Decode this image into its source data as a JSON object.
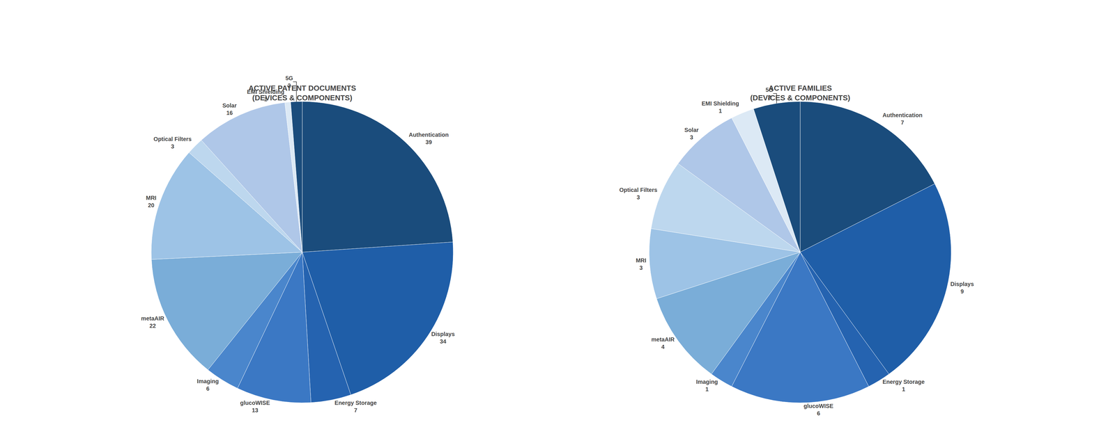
{
  "chart_data": [
    {
      "type": "pie",
      "title": "ACTIVE PATENT DOCUMENTS\n(DEVICES & COMPONENTS)",
      "categories": [
        "Authentication",
        "Displays",
        "Energy Storage",
        "glucoWISE",
        "Imaging",
        "metaAIR",
        "MRI",
        "Optical Filters",
        "Solar",
        "EMI Shielding",
        "5G"
      ],
      "values": [
        39,
        34,
        7,
        13,
        6,
        22,
        20,
        3,
        16,
        1,
        2
      ],
      "colors": [
        "#1a4c7c",
        "#1f5ea8",
        "#2563b0",
        "#3b78c4",
        "#4a86cc",
        "#7aadd8",
        "#9dc3e6",
        "#bdd7ee",
        "#afc7e8",
        "#dce9f5",
        "#1a4c7c"
      ],
      "data_labels": true
    },
    {
      "type": "pie",
      "title": "ACTIVE FAMILIES\n(DEVICES & COMPONENTS)",
      "categories": [
        "Authentication",
        "Displays",
        "Energy Storage",
        "glucoWISE",
        "Imaging",
        "metaAIR",
        "MRI",
        "Optical Filters",
        "Solar",
        "EMI Shielding",
        "5G"
      ],
      "values": [
        7,
        9,
        1,
        6,
        1,
        4,
        3,
        3,
        3,
        1,
        2
      ],
      "colors": [
        "#1a4c7c",
        "#1f5ea8",
        "#2563b0",
        "#3b78c4",
        "#4a86cc",
        "#7aadd8",
        "#9dc3e6",
        "#bdd7ee",
        "#afc7e8",
        "#dce9f5",
        "#1a4c7c"
      ],
      "data_labels": true
    }
  ]
}
